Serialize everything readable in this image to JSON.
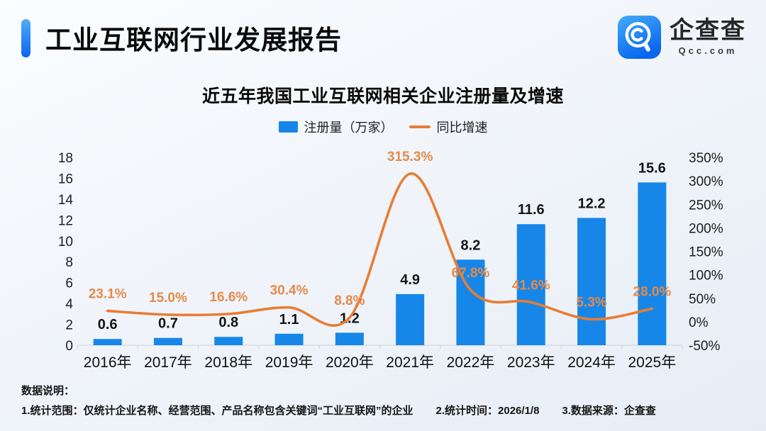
{
  "header": {
    "title": "工业互联网行业发展报告",
    "logo": {
      "name": "企查查",
      "domain": "Qcc.com"
    }
  },
  "chart_data": {
    "type": "bar+line",
    "title": "近五年我国工业互联网相关企业注册量及增速",
    "categories": [
      "2016年",
      "2017年",
      "2018年",
      "2019年",
      "2020年",
      "2021年",
      "2022年",
      "2023年",
      "2024年",
      "2025年"
    ],
    "series": [
      {
        "name": "注册量（万家）",
        "type": "bar",
        "axis": "left",
        "values": [
          0.6,
          0.7,
          0.8,
          1.1,
          1.2,
          4.9,
          8.2,
          11.6,
          12.2,
          15.6
        ],
        "labels": [
          "0.6",
          "0.7",
          "0.8",
          "1.1",
          "1.2",
          "4.9",
          "8.2",
          "11.6",
          "12.2",
          "15.6"
        ]
      },
      {
        "name": "同比增速",
        "type": "line",
        "axis": "right",
        "values": [
          23.1,
          15.0,
          16.6,
          30.4,
          8.8,
          315.3,
          67.8,
          41.6,
          5.3,
          28.0
        ],
        "labels": [
          "23.1%",
          "15.0%",
          "16.6%",
          "30.4%",
          "8.8%",
          "315.3%",
          "67.8%",
          "41.6%",
          "5.3%",
          "28.0%"
        ]
      }
    ],
    "left_axis": {
      "min": 0,
      "max": 18,
      "step": 2,
      "tick_suffix": ""
    },
    "right_axis": {
      "min": -50,
      "max": 350,
      "step": 50,
      "tick_suffix": "%"
    },
    "legend": [
      {
        "label": "注册量（万家）"
      },
      {
        "label": "同比增速"
      }
    ],
    "legend_position": "top-center",
    "grid": false
  },
  "footer": {
    "heading": "数据说明：",
    "items": [
      "1.统计范围：仅统计企业名称、经营范围、产品名称包含关键词“工业互联网”的企业",
      "2.统计时间：2026/1/8",
      "3.数据来源：企查查"
    ]
  },
  "colors": {
    "bar": "#1687e8",
    "line": "#e87d33",
    "line_label": "#e58a4a",
    "bar_label": "#141414",
    "axis_text": "#1c1c1c",
    "axis_line": "#d4dae2",
    "accent": "#0d6ef0"
  }
}
